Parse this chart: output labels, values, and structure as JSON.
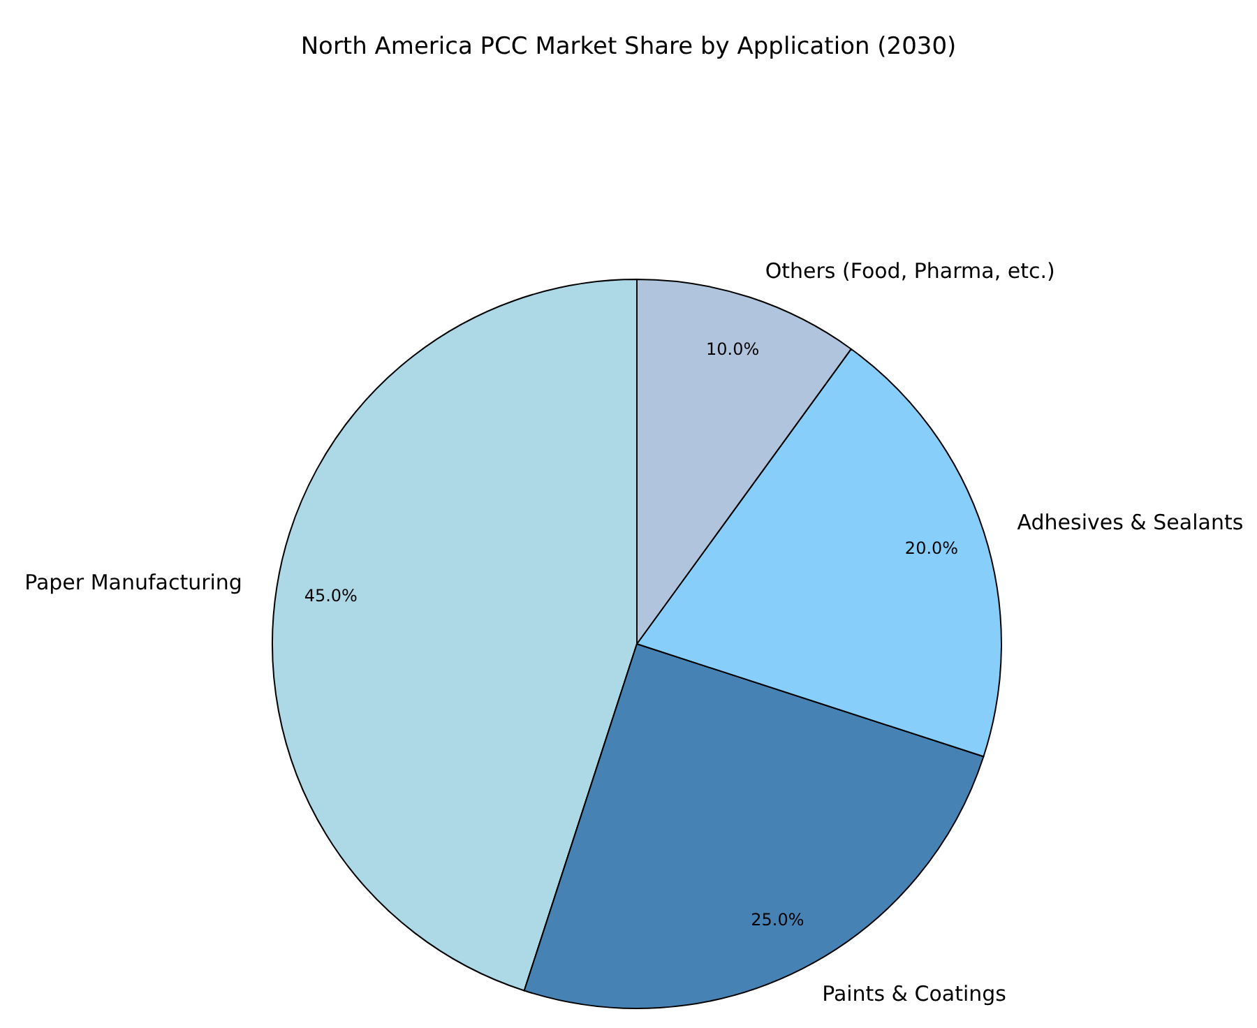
{
  "chart_data": {
    "type": "pie",
    "title": "North America PCC Market Share by Application (2030)",
    "categories": [
      "Paper Manufacturing",
      "Paints & Coatings",
      "Adhesives & Sealants",
      "Others (Food, Pharma, etc.)"
    ],
    "values": [
      45,
      25,
      20,
      10
    ],
    "colors": [
      "#add8e6",
      "#4682b4",
      "#87cefa",
      "#b0c4de"
    ],
    "value_labels": [
      "45.0%",
      "25.0%",
      "20.0%",
      "10.0%"
    ]
  }
}
